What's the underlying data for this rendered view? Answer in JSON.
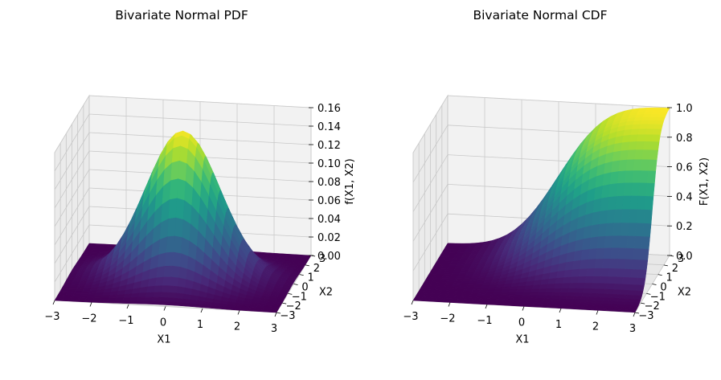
{
  "figure": {
    "background": "#ffffff",
    "pane_color": "#f2f2f2",
    "grid_color": "#c8c8c8",
    "colormap": "viridis"
  },
  "chart_data": [
    {
      "type": "surface3d",
      "title": "Bivariate Normal PDF",
      "function": "bivariate standard normal probability density",
      "xlabel": "X1",
      "ylabel": "X2",
      "zlabel": "f(X1, X2)",
      "xlim": [
        -3,
        3
      ],
      "ylim": [
        -3,
        3
      ],
      "zlim": [
        0,
        0.16
      ],
      "x_ticks": [
        "−3",
        "−2",
        "−1",
        "0",
        "1",
        "2",
        "3"
      ],
      "y_ticks": [
        "−3",
        "−2",
        "−1",
        "0",
        "1",
        "2",
        "3"
      ],
      "z_ticks": [
        "0.00",
        "0.02",
        "0.04",
        "0.06",
        "0.08",
        "0.10",
        "0.12",
        "0.14",
        "0.16"
      ],
      "peak": {
        "x": 0,
        "y": 0,
        "z": 0.159
      },
      "grid": true
    },
    {
      "type": "surface3d",
      "title": "Bivariate Normal CDF",
      "function": "bivariate standard normal cumulative distribution",
      "xlabel": "X1",
      "ylabel": "X2",
      "zlabel": "F(X1, X2)",
      "xlim": [
        -3,
        3
      ],
      "ylim": [
        -3,
        3
      ],
      "zlim": [
        0,
        1.0
      ],
      "x_ticks": [
        "−3",
        "−2",
        "−1",
        "0",
        "1",
        "2",
        "3"
      ],
      "y_ticks": [
        "−3",
        "−2",
        "−1",
        "0",
        "1",
        "2",
        "3"
      ],
      "z_ticks": [
        "0.0",
        "0.2",
        "0.4",
        "0.6",
        "0.8",
        "1.0"
      ],
      "peak": {
        "x": 3,
        "y": 3,
        "z": 0.997
      },
      "grid": true
    }
  ]
}
